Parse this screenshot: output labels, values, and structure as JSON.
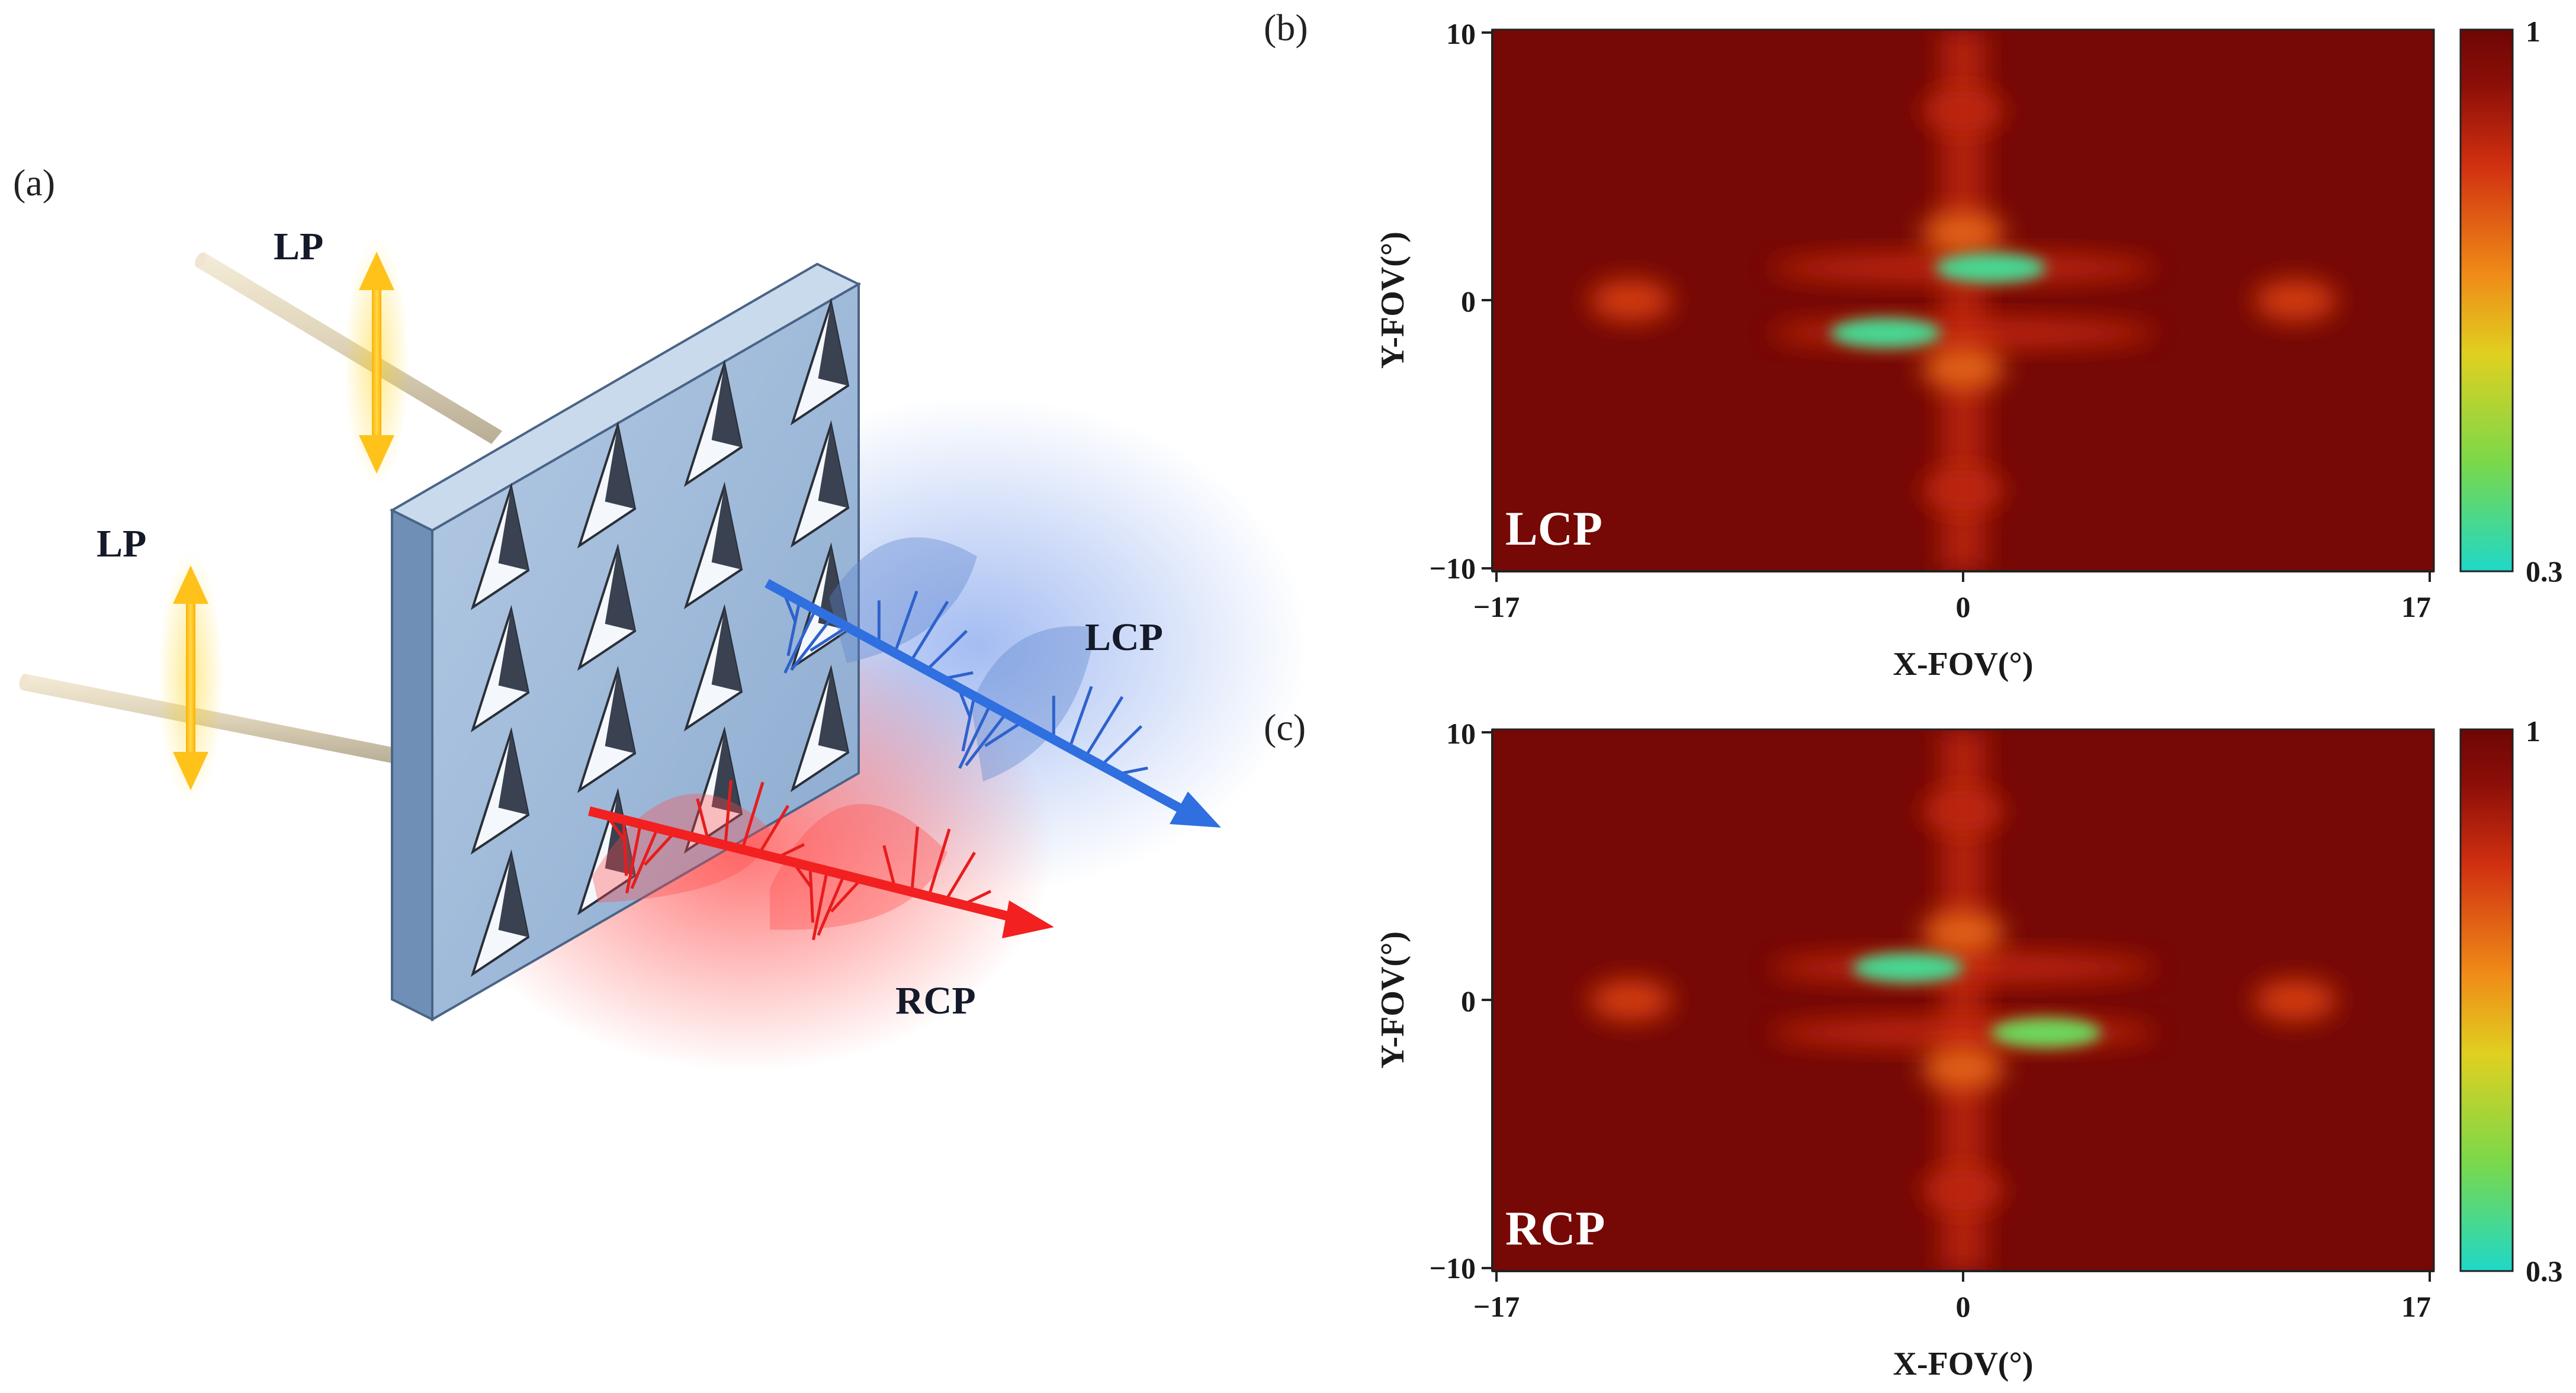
{
  "panels": {
    "a": {
      "letter": "(a)",
      "incident_labels": [
        "LP",
        "LP"
      ],
      "output_labels": {
        "lcp": "LCP",
        "rcp": "RCP"
      },
      "colors": {
        "plate": "#9dbbdc",
        "lcp_beam": "#2f6fe0",
        "rcp_beam": "#ee2222",
        "lp_arrow": "#f4b400"
      }
    },
    "b": {
      "letter": "(b)",
      "map_label": "LCP",
      "x_axis": {
        "title": "X-FOV(°)",
        "ticks": [
          "−17",
          "0",
          "17"
        ]
      },
      "y_axis": {
        "title": "Y-FOV(°)",
        "ticks": [
          "10",
          "0",
          "−10"
        ]
      },
      "colorbar": {
        "max": "1",
        "min": "0.3"
      }
    },
    "c": {
      "letter": "(c)",
      "map_label": "RCP",
      "x_axis": {
        "title": "X-FOV(°)",
        "ticks": [
          "−17",
          "0",
          "17"
        ]
      },
      "y_axis": {
        "title": "Y-FOV(°)",
        "ticks": [
          "10",
          "0",
          "−10"
        ]
      },
      "colorbar": {
        "max": "1",
        "min": "0.3"
      }
    }
  },
  "chart_data": [
    {
      "type": "heatmap",
      "panel": "b",
      "xlabel": "X-FOV(°)",
      "ylabel": "Y-FOV(°)",
      "xlim": [
        -17,
        17
      ],
      "ylim": [
        -10,
        10
      ],
      "zlim": [
        0.3,
        1
      ],
      "colormap": [
        "#1fd8c8",
        "#7ad84a",
        "#e0d020",
        "#f08a18",
        "#d03010",
        "#8c0e08",
        "#6e0604"
      ],
      "background": 0.97,
      "features": [
        {
          "kind": "vertical-band",
          "x": 0,
          "y": [
            -10,
            10
          ],
          "value": 0.8
        },
        {
          "kind": "spot",
          "x": -12,
          "y": 0,
          "value": 0.75
        },
        {
          "kind": "spot",
          "x": 12,
          "y": 0,
          "value": 0.75
        },
        {
          "kind": "spot",
          "x": 0,
          "y": 7,
          "value": 0.8
        },
        {
          "kind": "spot",
          "x": 0,
          "y": -7,
          "value": 0.8
        },
        {
          "kind": "spot",
          "x": 0,
          "y": 2.5,
          "value": 0.7
        },
        {
          "kind": "spot",
          "x": 0,
          "y": -2.5,
          "value": 0.7
        },
        {
          "kind": "lobe",
          "x": 1,
          "y": 1.2,
          "value": 0.35
        },
        {
          "kind": "lobe",
          "x": -2.8,
          "y": -1.2,
          "value": 0.35
        },
        {
          "kind": "streak",
          "x": [
            -7,
            7
          ],
          "y": 1.2,
          "value": 0.78
        },
        {
          "kind": "streak",
          "x": [
            -7,
            7
          ],
          "y": -1.2,
          "value": 0.78
        }
      ]
    },
    {
      "type": "heatmap",
      "panel": "c",
      "xlabel": "X-FOV(°)",
      "ylabel": "Y-FOV(°)",
      "xlim": [
        -17,
        17
      ],
      "ylim": [
        -10,
        10
      ],
      "zlim": [
        0.3,
        1
      ],
      "colormap": [
        "#1fd8c8",
        "#7ad84a",
        "#e0d020",
        "#f08a18",
        "#d03010",
        "#8c0e08",
        "#6e0604"
      ],
      "background": 0.97,
      "features": [
        {
          "kind": "vertical-band",
          "x": 0,
          "y": [
            -10,
            10
          ],
          "value": 0.8
        },
        {
          "kind": "spot",
          "x": -12,
          "y": 0,
          "value": 0.75
        },
        {
          "kind": "spot",
          "x": 12,
          "y": 0,
          "value": 0.75
        },
        {
          "kind": "spot",
          "x": 0,
          "y": 7,
          "value": 0.8
        },
        {
          "kind": "spot",
          "x": 0,
          "y": -7,
          "value": 0.8
        },
        {
          "kind": "spot",
          "x": 0,
          "y": 2.5,
          "value": 0.7
        },
        {
          "kind": "spot",
          "x": 0,
          "y": -2.5,
          "value": 0.7
        },
        {
          "kind": "lobe",
          "x": -2,
          "y": 1.2,
          "value": 0.35
        },
        {
          "kind": "lobe",
          "x": 3,
          "y": -1.2,
          "value": 0.4
        },
        {
          "kind": "streak",
          "x": [
            -7,
            7
          ],
          "y": 1.2,
          "value": 0.78
        },
        {
          "kind": "streak",
          "x": [
            -7,
            7
          ],
          "y": -1.2,
          "value": 0.78
        }
      ]
    }
  ]
}
